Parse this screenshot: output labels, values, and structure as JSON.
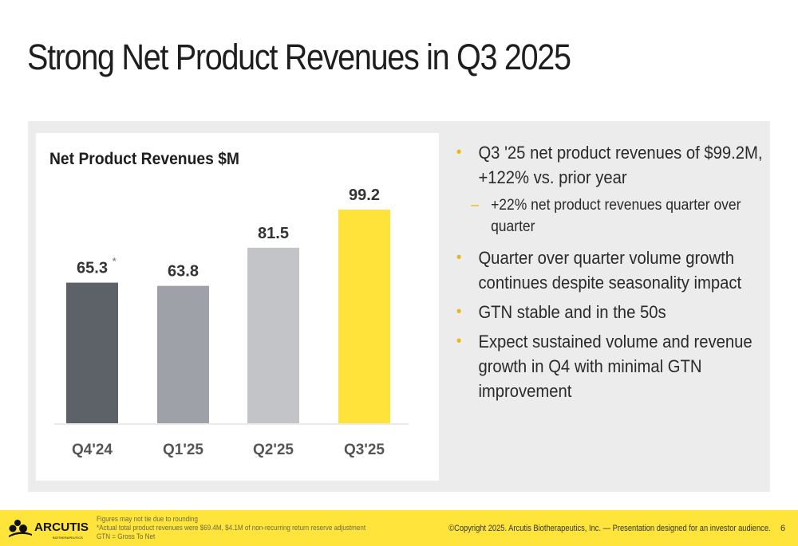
{
  "title": "Strong Net Product Revenues in Q3 2025",
  "chart_data": {
    "type": "bar",
    "title": "Net Product Revenues $M",
    "categories": [
      "Q4'24",
      "Q1'25",
      "Q2'25",
      "Q3'25"
    ],
    "values": [
      65.3,
      63.8,
      81.5,
      99.2
    ],
    "data_labels": [
      "65.3",
      "63.8",
      "81.5",
      "99.2"
    ],
    "annotations": {
      "0": "*"
    },
    "colors": [
      "#5d6168",
      "#9ea1a7",
      "#c3c4c8",
      "#ffe23a"
    ],
    "ylim": [
      0,
      105
    ],
    "grid": false,
    "legend": "none"
  },
  "bullets": [
    {
      "text": "Q3 '25 net product revenues of $99.2M, +122% vs. prior year",
      "sub": [
        "+22% net product revenues quarter over quarter"
      ]
    },
    {
      "text": "Quarter over quarter volume growth continues despite seasonality impact",
      "sub": []
    },
    {
      "text": "GTN stable and in the 50s",
      "sub": []
    },
    {
      "text": "Expect sustained volume and revenue growth in Q4 with minimal GTN improvement",
      "sub": []
    }
  ],
  "footer": {
    "logo_text": "ARCUTIS",
    "logo_sub": "BIOTHERAPEUTICS",
    "notes": [
      "Figures may not tie due to rounding",
      "*Actual total product revenues were $69.4M, $4.1M of non-recurring return reserve adjustment",
      "GTN = Gross To Net"
    ],
    "copyright": "©Copyright 2025. Arcutis Biotherapeutics, Inc. —  Presentation designed for an investor audience.",
    "page_number": "6",
    "accent_color": "#ffe53b"
  }
}
